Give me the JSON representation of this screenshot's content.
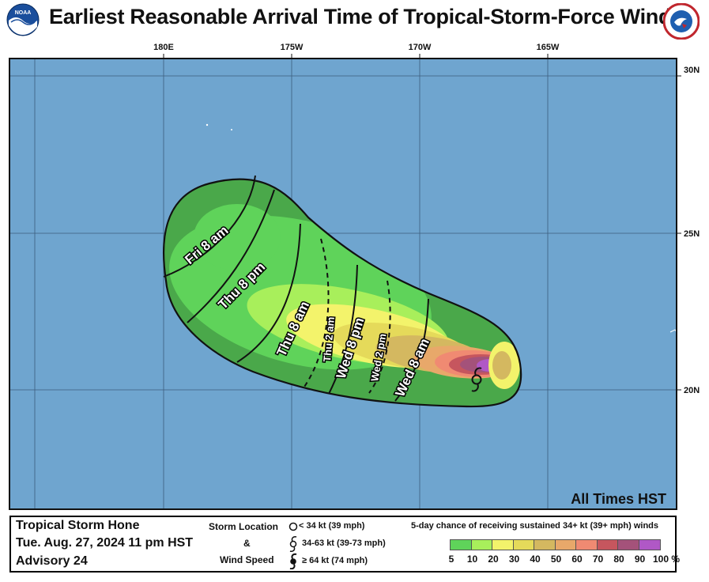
{
  "header": {
    "title": "Earliest Reasonable Arrival Time of Tropical-Storm-Force Winds",
    "noaa_logo_text": "NOAA",
    "nws_logo_text": "NATIONAL WEATHER SERVICE"
  },
  "map": {
    "longitude_labels": [
      "180E",
      "175W",
      "170W",
      "165W"
    ],
    "latitude_labels": [
      "30N",
      "25N",
      "20N"
    ],
    "times_note": "All Times HST",
    "arrival_labels": [
      "Fri  8 am",
      "Thu  8 pm",
      "Thu  8 am",
      "Thu  2 am",
      "Wed  8 pm",
      "Wed  2 pm",
      "Wed  8 am"
    ],
    "storm_symbol": "tropical-storm-icon",
    "colors": {
      "ocean": "#6fa5cf",
      "land": "#ffffff",
      "grid": "#3d5e7e"
    }
  },
  "footer": {
    "storm_name": "Tropical Storm Hone",
    "datetime": "Tue. Aug. 27, 2024  11 pm HST",
    "advisory": "Advisory 24",
    "storm_location_label": "Storm Location",
    "ampersand": "&",
    "wind_speed_label": "Wind Speed",
    "legend_items": [
      {
        "icon": "circle-icon",
        "text": "< 34 kt (39 mph)"
      },
      {
        "icon": "tropical-storm-icon",
        "text": "34-63 kt (39-73 mph)"
      },
      {
        "icon": "hurricane-icon",
        "text": "≥ 64 kt (74 mph)"
      }
    ],
    "probability_title": "5-day chance of receiving sustained 34+ kt (39+ mph) winds",
    "probability_scale": [
      {
        "value": "5",
        "color": "#4aa84a"
      },
      {
        "value": "10",
        "color": "#5fd35a"
      },
      {
        "value": "20",
        "color": "#a8ef5b"
      },
      {
        "value": "30",
        "color": "#f3f36b"
      },
      {
        "value": "40",
        "color": "#e5da5a"
      },
      {
        "value": "50",
        "color": "#d4b860"
      },
      {
        "value": "60",
        "color": "#e8a86a"
      },
      {
        "value": "70",
        "color": "#f08a72"
      },
      {
        "value": "80",
        "color": "#c6565e"
      },
      {
        "value": "90",
        "color": "#a4527a"
      },
      {
        "value": "100 %",
        "color": "#b058c6"
      }
    ]
  }
}
